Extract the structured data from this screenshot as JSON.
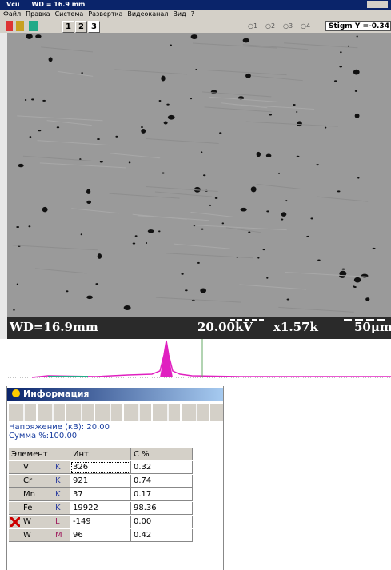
{
  "window": {
    "title": "Vcu",
    "wd": "WD = 16.9 mm"
  },
  "menu": [
    "Файл",
    "Правка",
    "Система",
    "Развертка",
    "Видеоканал",
    "Вид",
    "?"
  ],
  "toolbar": {
    "buttons": [
      "1",
      "2",
      "3"
    ],
    "radios": [
      "1",
      "2",
      "3",
      "4"
    ],
    "stigm": "Stigm Y =-0.34"
  },
  "image": {
    "wd": "WD=16.9mm",
    "kv": "20.00kV",
    "mag": "x1.57k",
    "scale": "50µm"
  },
  "info": {
    "title": "Информация",
    "voltage_label": "Напряжение (кВ):",
    "voltage": "20.00",
    "sum_label": "Сумма %:",
    "sum": "100.00",
    "table": {
      "headers": [
        "Элемент",
        "Инт.",
        "С %"
      ],
      "rows": [
        [
          "V",
          "K",
          "326",
          "0.32"
        ],
        [
          "Cr",
          "K",
          "921",
          "0.74"
        ],
        [
          "Mn",
          "K",
          "37",
          "0.17"
        ],
        [
          "Fe",
          "K",
          "19922",
          "98.36"
        ],
        [
          "W",
          "L",
          "-149",
          "0.00"
        ],
        [
          "W",
          "M",
          "96",
          "0.42"
        ]
      ]
    }
  }
}
